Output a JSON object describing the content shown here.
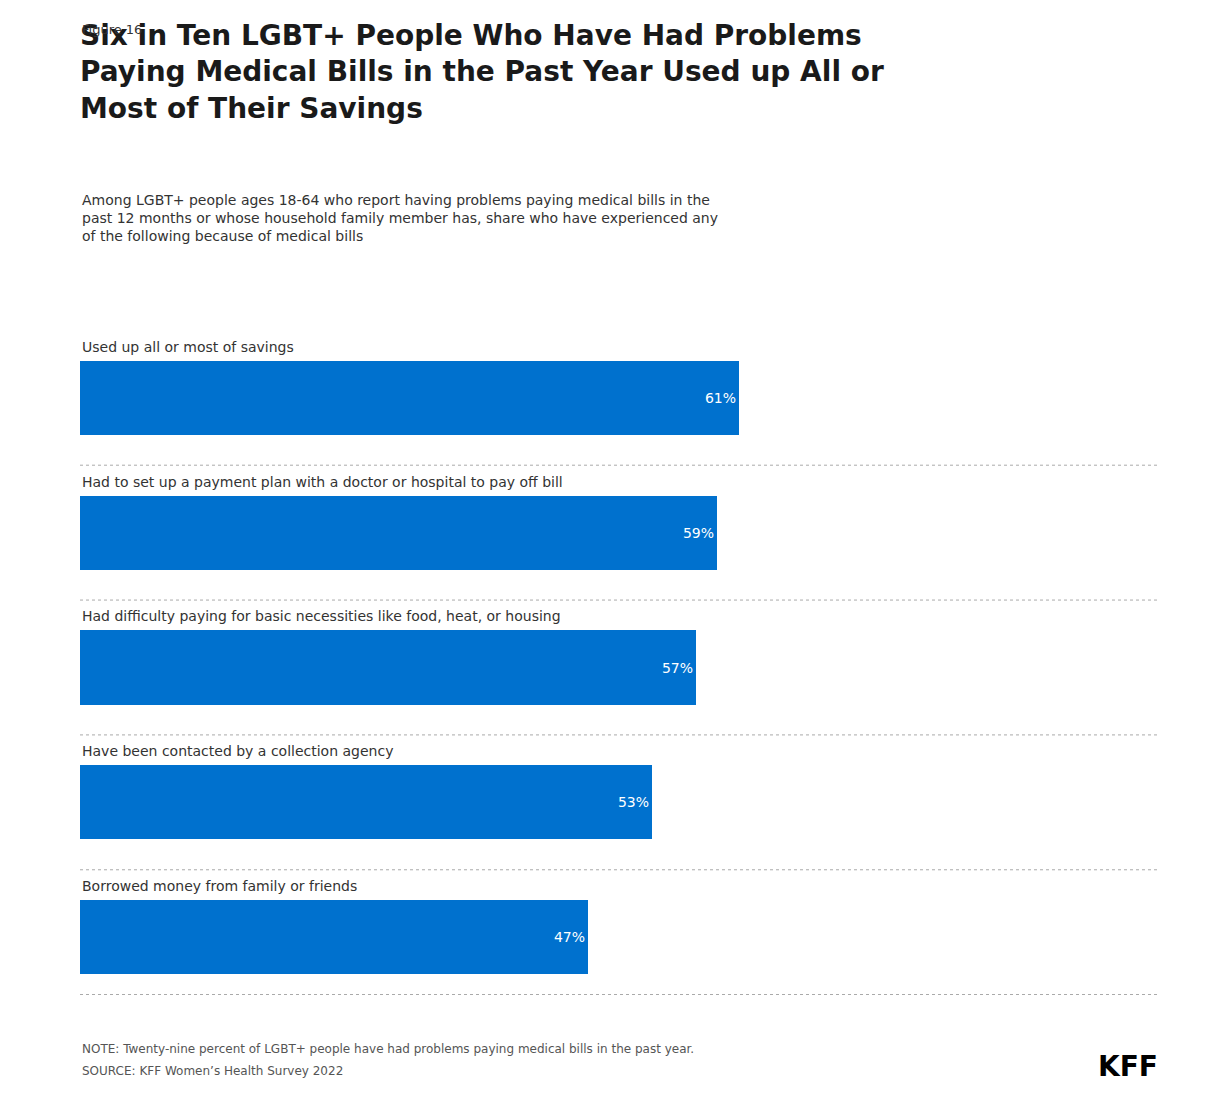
{
  "chart_data": {
    "type": "bar",
    "orientation": "horizontal",
    "title": "Six in Ten LGBT+ People Who Have Had Problems\nPaying Medical Bills in the Past Year Used up All or\nMost of Their Savings",
    "subtitle": "Among LGBT+ people ages 18-64 who report having problems paying medical bills in the\npast 12 months or whose household family member has, share who have experienced any\nof the following because of medical bills",
    "annotations": [
      "Figure 16",
      "NOTE: Twenty-nine percent of LGBT+ people have had problems paying medical bills in the past year.",
      "SOURCE: KFF Women’s Health Survey 2022",
      "KFF"
    ],
    "categories": [
      "Used up all or most of savings",
      "Had to set up a payment plan with a doctor or hospital to pay off bill",
      "Had difficulty paying for basic necessities like food, heat, or housing",
      "Have been contacted by a collection agency",
      "Borrowed money from family or friends"
    ],
    "values": [
      61,
      59,
      57,
      53,
      47
    ],
    "value_labels": [
      "61%",
      "59%",
      "57%",
      "53%",
      "47%"
    ],
    "data_labels": true,
    "color": "#0071CE",
    "xlim": [
      0,
      100
    ],
    "grid": false,
    "tick_labels": false
  }
}
